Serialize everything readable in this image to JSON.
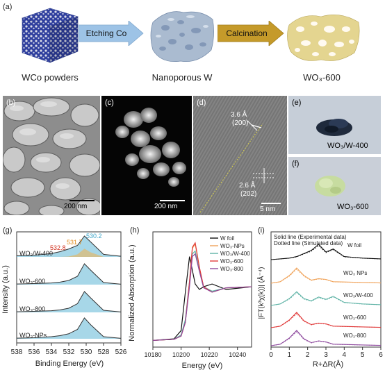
{
  "panel_a": {
    "label": "(a)",
    "step1": "Etching Co",
    "step2": "Calcination",
    "caption1": "WCo powders",
    "caption2": "Nanoporous W",
    "caption3": "WO₃-600",
    "colors": {
      "arrow1": "#9dc3e6",
      "arrow2": "#c59a2a",
      "cube": "#3b4bb0",
      "nanoporous": "#aabbd0",
      "wo3": "#e4d590"
    }
  },
  "panel_b": {
    "label": "(b)",
    "scale": "200 nm"
  },
  "panel_c": {
    "label": "(c)",
    "scale": "200 nm"
  },
  "panel_d": {
    "label": "(d)",
    "d1": "3.6 Å",
    "d1_plane": "(200)",
    "d2": "2.6 Å",
    "d2_plane": "(202)",
    "scale": "5 nm"
  },
  "panel_e": {
    "label": "(e)",
    "sample": "WO₃/W-400"
  },
  "panel_f": {
    "label": "(f)",
    "sample": "WO₃-600"
  },
  "panel_g": {
    "label": "(g)",
    "peak1": "530.2",
    "peak2": "531.7",
    "peak3": "532.8",
    "samples": [
      "WO₃/W-400",
      "WO₃-600",
      "WO₃-800",
      "WO₃-NPs"
    ],
    "ylabel": "Intensity (a.u.)",
    "xlabel": "Binding Energy (eV)",
    "xticks": [
      "538",
      "536",
      "534",
      "532",
      "530",
      "528",
      "526"
    ]
  },
  "panel_h": {
    "label": "(h)",
    "legend": [
      "W foil",
      "WO₃-NPs",
      "WO₃/W-400",
      "WO₃-600",
      "WO₃-800"
    ],
    "ylabel": "Normalized Absorption (a.u.)",
    "xlabel": "Energy (eV)",
    "xticks": [
      "10180",
      "10200",
      "10220",
      "10240"
    ]
  },
  "panel_i": {
    "label": "(i)",
    "note1": "Solid line (Experimental data)",
    "note2": "Dotted line (Simulated data)",
    "samples": [
      "W foil",
      "WO₃ NPs",
      "WO₃/W-400",
      "WO₃-600",
      "WO₃-800"
    ],
    "ylabel": "|FT(k³χ(k))| (Å⁻⁴)",
    "xlabel": "R+ΔR(Å)",
    "xticks": [
      "0",
      "1",
      "2",
      "3",
      "4",
      "5",
      "6"
    ]
  },
  "chart_data": [
    {
      "type": "line",
      "xlabel": "Binding Energy (eV)",
      "ylabel": "Intensity (a.u.)",
      "xlim": [
        538,
        526
      ],
      "x": [
        538,
        536,
        534,
        533,
        532,
        531,
        530.2,
        529.5,
        528,
        526
      ],
      "series": [
        {
          "name": "WO₃/W-400",
          "values": [
            0.05,
            0.08,
            0.16,
            0.25,
            0.38,
            0.55,
            1.0,
            0.72,
            0.12,
            0.03
          ]
        },
        {
          "name": "WO₃-600",
          "values": [
            0.03,
            0.05,
            0.08,
            0.12,
            0.2,
            0.4,
            1.0,
            0.7,
            0.1,
            0.02
          ]
        },
        {
          "name": "WO₃-800",
          "values": [
            0.03,
            0.05,
            0.08,
            0.12,
            0.2,
            0.42,
            1.0,
            0.7,
            0.1,
            0.02
          ]
        },
        {
          "name": "WO₃-NPs",
          "values": [
            0.03,
            0.05,
            0.1,
            0.15,
            0.24,
            0.45,
            1.0,
            0.68,
            0.1,
            0.02
          ]
        }
      ]
    },
    {
      "type": "line",
      "xlabel": "Energy (eV)",
      "ylabel": "Normalized Absorption (a.u.)",
      "xlim": [
        10180,
        10250
      ],
      "x": [
        10180,
        10195,
        10200,
        10203,
        10206,
        10208,
        10210,
        10213,
        10216,
        10222,
        10232,
        10250
      ],
      "series": [
        {
          "name": "W foil",
          "values": [
            0.02,
            0.05,
            0.2,
            0.9,
            1.55,
            1.3,
            1.05,
            0.95,
            1.0,
            1.05,
            0.95,
            1.0
          ]
        },
        {
          "name": "WO₃-NPs",
          "values": [
            0.02,
            0.04,
            0.1,
            0.35,
            1.05,
            1.7,
            1.78,
            1.35,
            1.0,
            0.9,
            0.98,
            1.0
          ]
        },
        {
          "name": "WO₃/W-400",
          "values": [
            0.02,
            0.04,
            0.12,
            0.4,
            1.1,
            1.6,
            1.65,
            1.3,
            1.0,
            0.92,
            0.98,
            1.0
          ]
        },
        {
          "name": "WO₃-600",
          "values": [
            0.02,
            0.04,
            0.1,
            0.35,
            1.1,
            1.72,
            1.8,
            1.36,
            1.0,
            0.9,
            0.98,
            1.0
          ]
        },
        {
          "name": "WO₃-800",
          "values": [
            0.02,
            0.04,
            0.1,
            0.35,
            1.0,
            1.55,
            1.6,
            1.28,
            0.98,
            0.9,
            0.98,
            1.0
          ]
        }
      ]
    },
    {
      "type": "line",
      "xlabel": "R+ΔR(Å)",
      "ylabel": "|FT(k³χ(k))| (Å⁻⁴)",
      "xlim": [
        0,
        6
      ],
      "x": [
        0,
        0.5,
        1.0,
        1.4,
        1.8,
        2.2,
        2.6,
        3.0,
        3.4,
        4.0,
        5.0,
        6.0
      ],
      "series": [
        {
          "name": "W foil",
          "values": [
            0.0,
            0.05,
            0.1,
            0.2,
            0.4,
            0.6,
            1.0,
            0.5,
            0.7,
            0.2,
            0.1,
            0.05
          ]
        },
        {
          "name": "WO₃ NPs",
          "values": [
            0.0,
            0.1,
            0.5,
            1.0,
            0.5,
            0.2,
            0.3,
            0.25,
            0.1,
            0.08,
            0.05,
            0.02
          ]
        },
        {
          "name": "WO₃/W-400",
          "values": [
            0.0,
            0.1,
            0.45,
            0.9,
            0.45,
            0.3,
            0.55,
            0.4,
            0.6,
            0.2,
            0.1,
            0.05
          ]
        },
        {
          "name": "WO₃-600",
          "values": [
            0.0,
            0.1,
            0.5,
            1.0,
            0.45,
            0.2,
            0.3,
            0.25,
            0.1,
            0.08,
            0.05,
            0.02
          ]
        },
        {
          "name": "WO₃-800",
          "values": [
            0.0,
            0.1,
            0.5,
            1.0,
            0.45,
            0.2,
            0.32,
            0.25,
            0.1,
            0.08,
            0.05,
            0.02
          ]
        }
      ]
    }
  ]
}
